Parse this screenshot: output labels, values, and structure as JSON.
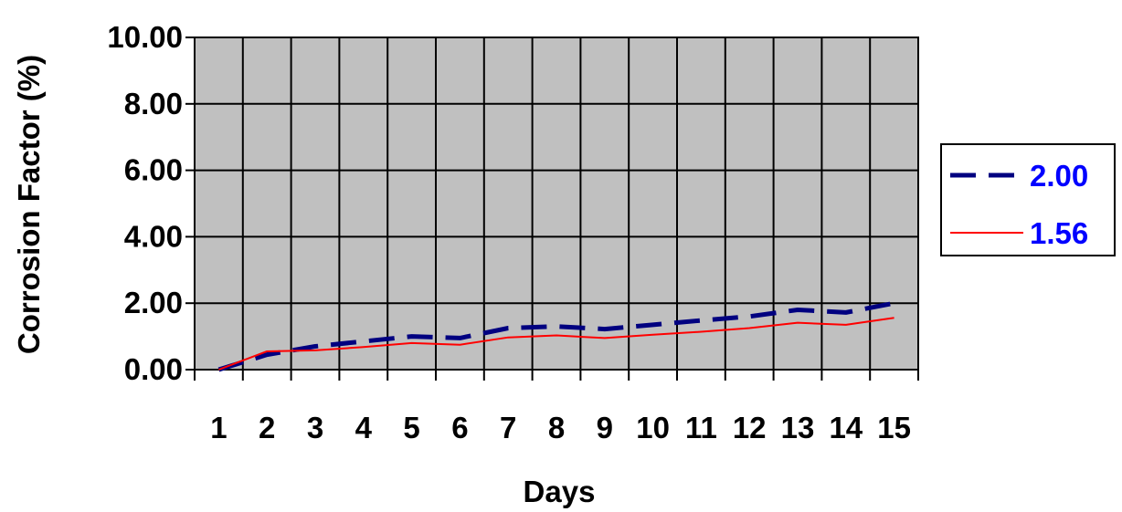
{
  "chart_data": {
    "type": "line",
    "title": "",
    "xlabel": "Days",
    "ylabel": "Corrosion Factor (%)",
    "categories": [
      "1",
      "2",
      "3",
      "4",
      "5",
      "6",
      "7",
      "8",
      "9",
      "10",
      "11",
      "12",
      "13",
      "14",
      "15"
    ],
    "ylim": [
      0,
      10
    ],
    "yticks": [
      "0.00",
      "2.00",
      "4.00",
      "6.00",
      "8.00",
      "10.00"
    ],
    "grid": true,
    "plot_background": "#C0C0C0",
    "legend_position": "right",
    "series": [
      {
        "name": "2.00",
        "color": "#000080",
        "dash": "dashed",
        "label_color": "#0000FF",
        "values": [
          0.0,
          0.45,
          0.7,
          0.85,
          1.0,
          0.95,
          1.25,
          1.3,
          1.22,
          1.35,
          1.48,
          1.6,
          1.8,
          1.72,
          2.0
        ]
      },
      {
        "name": "1.56",
        "color": "#FF0000",
        "dash": "solid",
        "label_color": "#0000FF",
        "values": [
          0.0,
          0.55,
          0.58,
          0.68,
          0.8,
          0.75,
          0.97,
          1.03,
          0.95,
          1.05,
          1.14,
          1.25,
          1.41,
          1.35,
          1.56
        ]
      }
    ]
  }
}
